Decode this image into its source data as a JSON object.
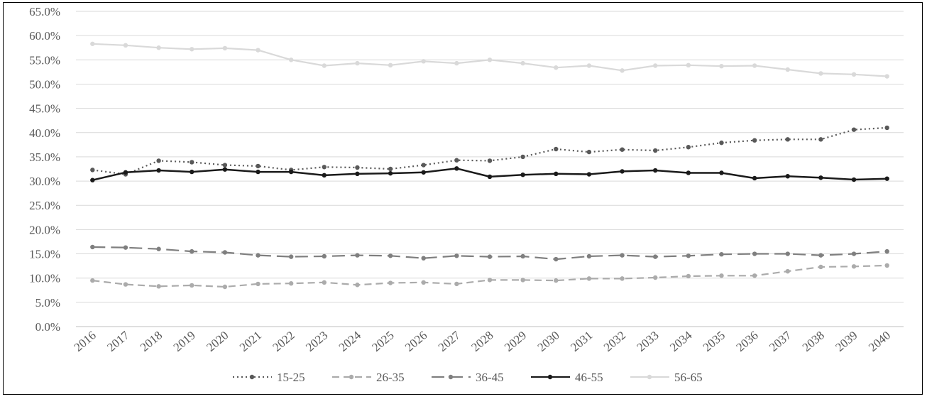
{
  "chart_data": {
    "type": "line",
    "title": "",
    "xlabel": "",
    "ylabel": "",
    "ylim": [
      0,
      65
    ],
    "y_tick_step": 5,
    "y_tick_format": "percent_1dp",
    "grid": "horizontal",
    "legend_position": "bottom",
    "x": [
      "2016",
      "2017",
      "2018",
      "2019",
      "2020",
      "2021",
      "2022",
      "2023",
      "2024",
      "2025",
      "2026",
      "2027",
      "2028",
      "2029",
      "2030",
      "2031",
      "2032",
      "2033",
      "2034",
      "2035",
      "2036",
      "2037",
      "2038",
      "2039",
      "2040"
    ],
    "series": [
      {
        "name": "15-25",
        "color": "#595959",
        "dash": "dot",
        "values": [
          32.3,
          31.4,
          34.2,
          33.9,
          33.3,
          33.1,
          32.3,
          32.9,
          32.8,
          32.5,
          33.3,
          34.3,
          34.2,
          35.0,
          36.6,
          36.0,
          36.5,
          36.3,
          37.0,
          37.9,
          38.4,
          38.6,
          38.6,
          40.6,
          41.0
        ]
      },
      {
        "name": "26-35",
        "color": "#ababab",
        "dash": "dash",
        "values": [
          9.5,
          8.7,
          8.3,
          8.5,
          8.2,
          8.8,
          8.9,
          9.1,
          8.6,
          9.0,
          9.1,
          8.8,
          9.6,
          9.6,
          9.5,
          9.9,
          9.9,
          10.1,
          10.4,
          10.5,
          10.5,
          11.4,
          12.3,
          12.4,
          12.6
        ]
      },
      {
        "name": "36-45",
        "color": "#7f7f7f",
        "dash": "longdash",
        "values": [
          16.4,
          16.3,
          16.0,
          15.5,
          15.3,
          14.7,
          14.4,
          14.5,
          14.7,
          14.6,
          14.1,
          14.6,
          14.4,
          14.5,
          13.9,
          14.5,
          14.7,
          14.4,
          14.6,
          14.9,
          15.0,
          15.0,
          14.7,
          15.0,
          15.5
        ]
      },
      {
        "name": "46-55",
        "color": "#1a1a1a",
        "dash": "solid",
        "values": [
          30.2,
          31.8,
          32.2,
          31.9,
          32.4,
          31.9,
          31.9,
          31.2,
          31.5,
          31.6,
          31.8,
          32.6,
          30.9,
          31.3,
          31.5,
          31.4,
          32.0,
          32.2,
          31.7,
          31.7,
          30.6,
          31.0,
          30.7,
          30.3,
          30.5
        ]
      },
      {
        "name": "56-65",
        "color": "#d9d9d9",
        "dash": "solid",
        "values": [
          58.3,
          58.0,
          57.5,
          57.2,
          57.4,
          57.0,
          55.0,
          53.8,
          54.3,
          53.9,
          54.7,
          54.3,
          55.0,
          54.3,
          53.4,
          53.8,
          52.8,
          53.8,
          53.9,
          53.7,
          53.8,
          53.0,
          52.2,
          52.0,
          51.6
        ]
      }
    ]
  }
}
